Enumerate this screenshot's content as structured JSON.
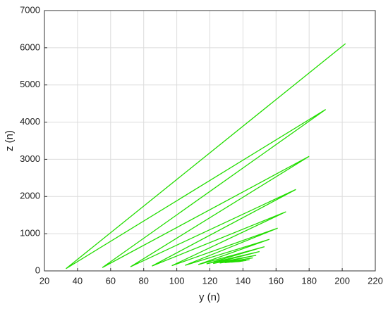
{
  "chart_data": {
    "type": "line",
    "xlabel": "y (n)",
    "ylabel": "z (n)",
    "x": [
      202,
      33,
      190,
      55,
      180,
      72,
      172,
      85,
      166,
      97,
      161,
      105,
      156,
      113,
      153,
      118,
      150,
      122,
      148,
      126,
      146,
      129,
      144,
      131,
      142,
      133,
      140,
      134,
      139,
      135,
      138,
      136
    ],
    "values": [
      6110,
      60,
      4340,
      90,
      3080,
      110,
      2190,
      130,
      1590,
      140,
      1150,
      150,
      850,
      170,
      650,
      190,
      520,
      200,
      420,
      210,
      350,
      220,
      300,
      230,
      280,
      235,
      265,
      240,
      258,
      245,
      252,
      248
    ],
    "color": "#22dd00",
    "xlim": [
      20,
      220
    ],
    "xticks": [
      20,
      40,
      60,
      80,
      100,
      120,
      140,
      160,
      180,
      200,
      220
    ],
    "ylim": [
      0,
      7000
    ],
    "yticks": [
      0,
      1000,
      2000,
      3000,
      4000,
      5000,
      6000,
      7000
    ],
    "grid": true
  }
}
